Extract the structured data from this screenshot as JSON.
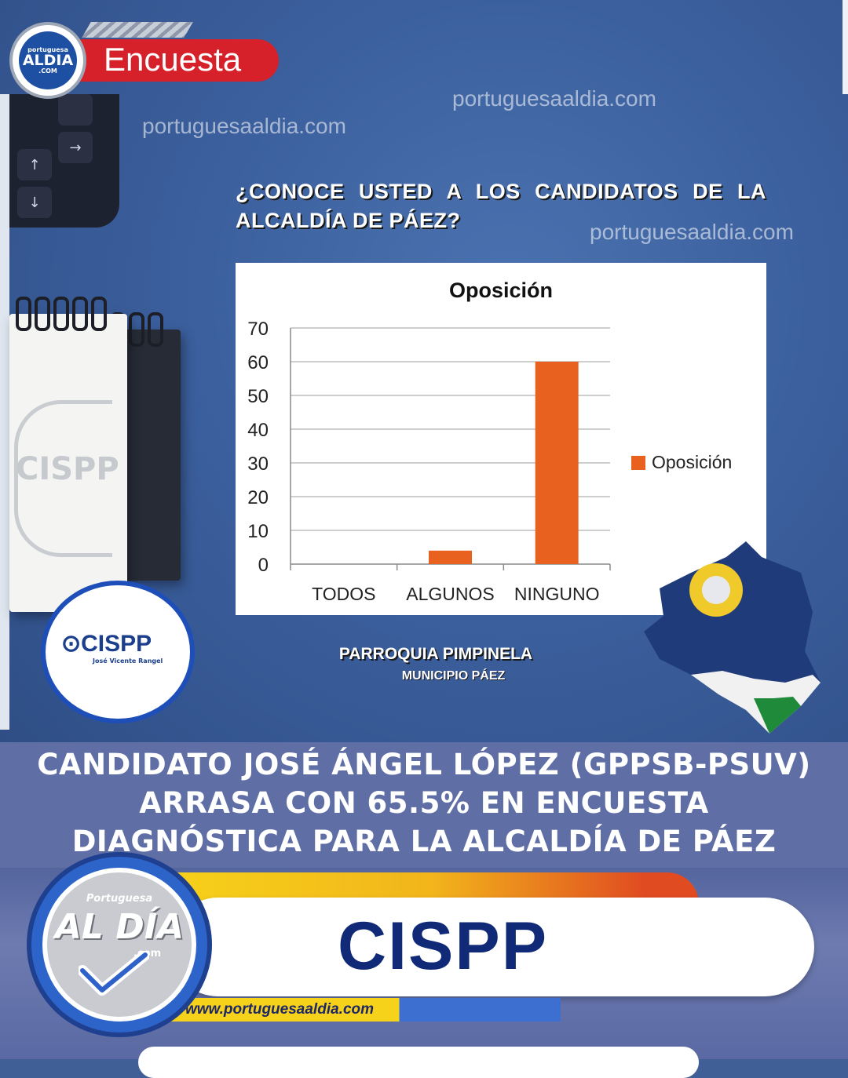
{
  "header": {
    "tag_label": "Encuesta",
    "logo_small": {
      "line1": "portuguesa",
      "line2": "ALDIA",
      "line3": ".COM"
    }
  },
  "watermarks": [
    "portuguesaaldia.com",
    "portuguesaaldia.com",
    "portuguesaaldia.com"
  ],
  "question": "¿CONOCE USTED A LOS CANDIDATOS DE LA ALCALDÍA DE PÁEZ?",
  "chart_data": {
    "type": "bar",
    "title": "Oposición",
    "categories": [
      "TODOS",
      "ALGUNOS",
      "NINGUNO"
    ],
    "series": [
      {
        "name": "Oposición",
        "values": [
          0,
          4,
          60
        ],
        "color": "#e8611f"
      }
    ],
    "ylim": [
      0,
      70
    ],
    "yticks": [
      "0",
      "10",
      "20",
      "30",
      "40",
      "50",
      "60",
      "70"
    ],
    "grid": true,
    "legend_position": "right"
  },
  "caption": {
    "parish": "PARROQUIA PIMPINELA",
    "municipality": "MUNICIPIO PÁEZ"
  },
  "cispp_logo": {
    "name": "CISPP",
    "sub": "José Vicente Rangel"
  },
  "stamp_text": "CISPP",
  "headline": "CANDIDATO JOSÉ ÁNGEL LÓPEZ (GPPSB-PSUV) ARRASA CON 65.5% EN ENCUESTA DIAGNÓSTICA PARA LA ALCALDÍA DE PÁEZ",
  "banner": {
    "label": "CISPP",
    "url": "www.portuguesaaldia.com",
    "logo": {
      "top": "Portuguesa",
      "main": "AL DÍA",
      "com": ".com"
    }
  },
  "colors": {
    "accent_red": "#d6202a",
    "navy": "#102a78",
    "bar": "#e8611f",
    "band": "#5f6ea5"
  }
}
